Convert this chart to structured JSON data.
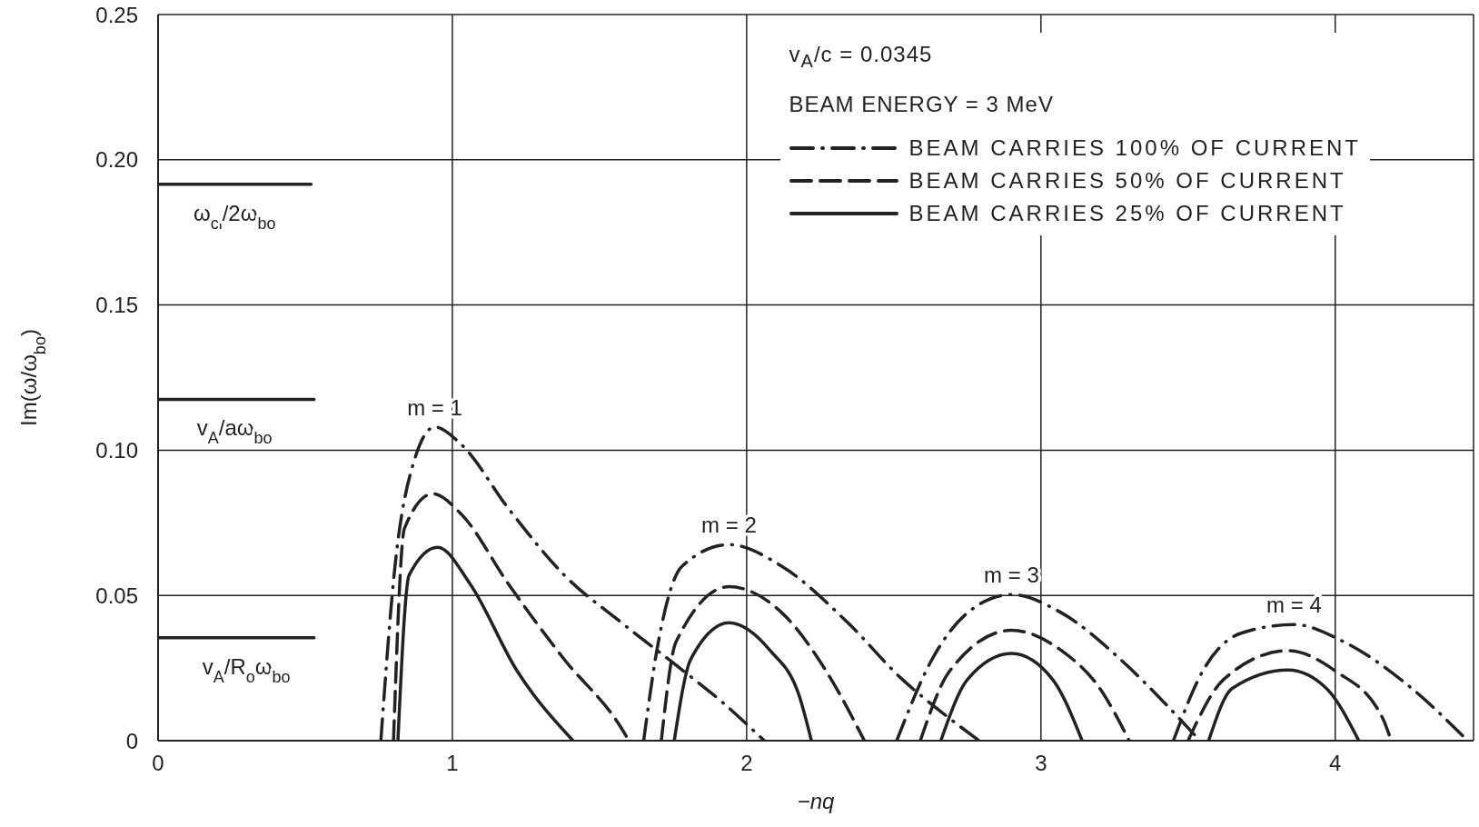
{
  "chart_data": {
    "type": "line",
    "xlabel": "−nq",
    "ylabel": "Im(ω/ω$_{bo}$)",
    "xlim": [
      0,
      4.47
    ],
    "xticks": [
      0,
      1,
      2,
      3,
      4
    ],
    "ylim": [
      0,
      0.25
    ],
    "yticks": [
      0,
      {
        "value": 0.05,
        "label": "0.05"
      },
      {
        "value": 0.1,
        "label": "0.10"
      },
      {
        "value": 0.15,
        "label": "0.15"
      },
      {
        "value": 0.2,
        "label": "0.20"
      },
      {
        "value": 0.25,
        "label": "0.25"
      }
    ],
    "grid": true,
    "legend": "top right",
    "marker": "none",
    "series": [
      {
        "name": "BEAM CARRIES 100% OF CURRENT",
        "color": "#222222",
        "line_style": "dashdot",
        "x": [
          0.757,
          0.805,
          0.869,
          0.94,
          1.03,
          1.19,
          1.38,
          1.57,
          1.76,
          1.92,
          2.06
        ],
        "values": [
          0,
          0.06,
          0.096,
          0.108,
          0.102,
          0.08,
          0.057,
          0.041,
          0.026,
          0.013,
          0
        ]
      },
      {
        "name": "BEAM CARRIES 50% OF CURRENT",
        "color": "#222222",
        "line_style": "dashed",
        "x": [
          0.8,
          0.837,
          0.933,
          1.03,
          1.19,
          1.38,
          1.57,
          1.6
        ],
        "values": [
          0,
          0.073,
          0.085,
          0.078,
          0.054,
          0.028,
          0.005,
          0
        ]
      },
      {
        "name": "BEAM CARRIES 25% OF CURRENT",
        "color": "#222222",
        "line_style": "solid",
        "x": [
          0.815,
          0.853,
          0.95,
          1.06,
          1.22,
          1.41
        ],
        "values": [
          0,
          0.057,
          0.0666,
          0.054,
          0.024,
          0
        ]
      },
      {
        "color": "#222222",
        "line_style": "dashdot",
        "x": [
          1.65,
          1.7,
          1.78,
          1.94,
          2.12,
          2.34,
          2.53,
          2.66,
          2.79
        ],
        "values": [
          0,
          0.034,
          0.06,
          0.0675,
          0.06,
          0.041,
          0.021,
          0.01,
          0
        ]
      },
      {
        "color": "#222222",
        "line_style": "dashed",
        "x": [
          1.71,
          1.76,
          1.94,
          2.12,
          2.27,
          2.4
        ],
        "values": [
          0,
          0.034,
          0.053,
          0.044,
          0.024,
          0
        ]
      },
      {
        "color": "#222222",
        "line_style": "solid",
        "x": [
          1.754,
          1.81,
          1.94,
          2.08,
          2.18,
          2.22
        ],
        "values": [
          0,
          0.028,
          0.0406,
          0.031,
          0.015,
          0
        ]
      },
      {
        "color": "#222222",
        "line_style": "dashdot",
        "x": [
          2.51,
          2.63,
          2.75,
          2.9,
          3.07,
          3.27,
          3.42,
          3.54
        ],
        "values": [
          0,
          0.028,
          0.044,
          0.0503,
          0.044,
          0.028,
          0.013,
          0
        ]
      },
      {
        "color": "#222222",
        "line_style": "dashed",
        "x": [
          2.59,
          2.69,
          2.9,
          3.07,
          3.2,
          3.3
        ],
        "values": [
          0,
          0.024,
          0.038,
          0.031,
          0.018,
          0
        ]
      },
      {
        "color": "#222222",
        "line_style": "solid",
        "x": [
          2.66,
          2.75,
          2.9,
          3.04,
          3.14
        ],
        "values": [
          0,
          0.021,
          0.03,
          0.021,
          0
        ]
      },
      {
        "color": "#222222",
        "line_style": "dashdot",
        "x": [
          3.45,
          3.55,
          3.68,
          3.86,
          4.03,
          4.26,
          4.45
        ],
        "values": [
          0,
          0.024,
          0.037,
          0.04,
          0.034,
          0.018,
          0
        ]
      },
      {
        "color": "#222222",
        "line_style": "dashed",
        "x": [
          3.5,
          3.62,
          3.84,
          4.0,
          4.16,
          4.19
        ],
        "values": [
          0,
          0.021,
          0.031,
          0.024,
          0.008,
          0
        ]
      },
      {
        "color": "#222222",
        "line_style": "solid",
        "x": [
          3.57,
          3.65,
          3.84,
          3.97,
          4.08
        ],
        "values": [
          0,
          0.018,
          0.0243,
          0.018,
          0
        ]
      },
      {
        "color": "#222222",
        "line_style": "solid",
        "x": [
          0,
          0.52
        ],
        "values": [
          0.1916,
          0.1916
        ]
      },
      {
        "color": "#222222",
        "line_style": "solid",
        "x": [
          0,
          0.53
        ],
        "values": [
          0.1175,
          0.1175
        ]
      },
      {
        "color": "#222222",
        "line_style": "solid",
        "x": [
          0,
          0.53
        ],
        "values": [
          0.0354,
          0.0354
        ]
      }
    ],
    "annotations": [
      "v$_{A}$/c = 0.0345",
      "BEAM ENERGY = 3 MeV",
      {
        "text": "ω$_{ci}$/2ω$_{bo}$",
        "x": 0.26,
        "y": 0.1916
      },
      {
        "text": "v$_{A}$/aω$_{bo}$",
        "x": 0.26,
        "y": 0.1175
      },
      {
        "text": "v$_{A}$/R$_{o}$ω$_{bo}$",
        "x": 0.3,
        "y": 0.0354
      },
      {
        "text": "m = 1",
        "x": 0.94,
        "y": 0.108
      },
      {
        "text": "m = 2",
        "x": 1.94,
        "y": 0.0675
      },
      {
        "text": "m = 3",
        "x": 2.9,
        "y": 0.0503
      },
      {
        "text": "m = 4",
        "x": 3.86,
        "y": 0.04
      }
    ]
  }
}
